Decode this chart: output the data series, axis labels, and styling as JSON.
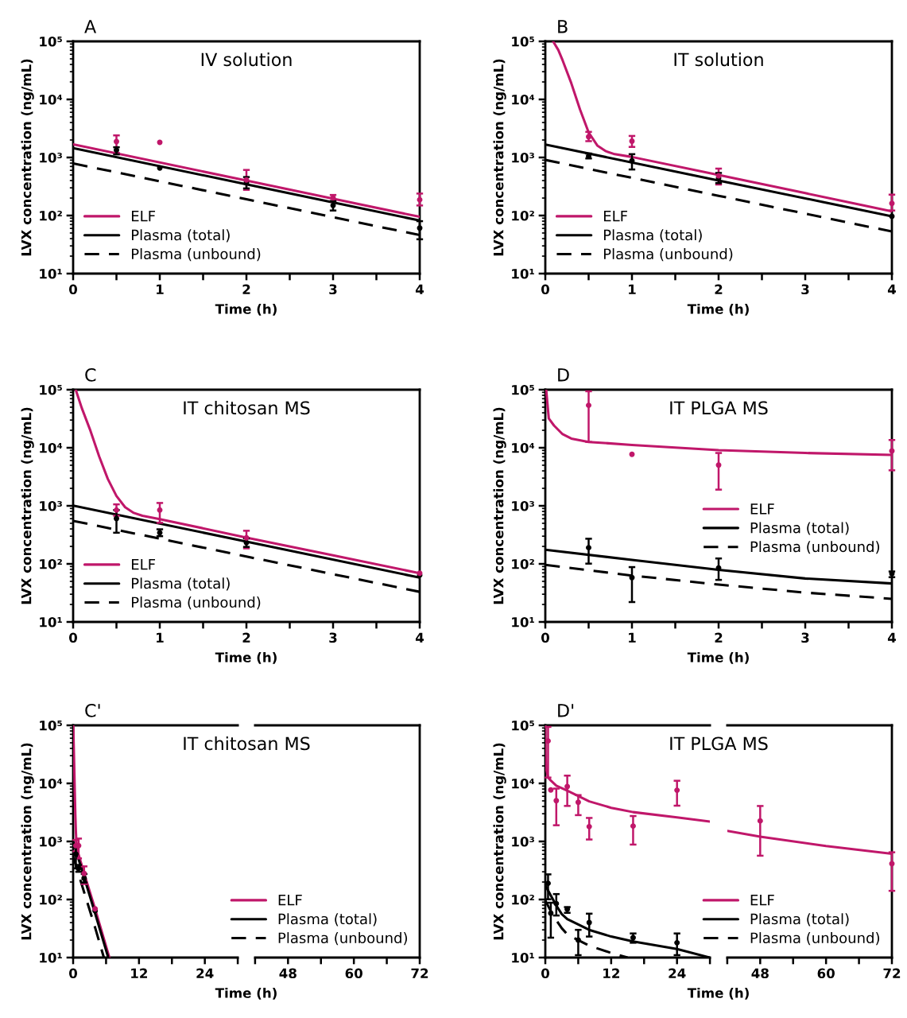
{
  "chart_data": [
    {
      "type": "line",
      "title": "IV solution",
      "annotations": [
        "A"
      ],
      "xlabel": "Time (h)",
      "ylabel": "LVX concentration (ng/mL)",
      "log": "y",
      "xlim": [
        0,
        4
      ],
      "ylim": [
        10,
        100000
      ],
      "xticks": [
        0,
        {
          "value": 0.5,
          "label": null
        },
        1,
        {
          "value": 1.5,
          "label": null
        },
        2,
        {
          "value": 2.5,
          "label": null
        },
        3,
        {
          "value": 3.5,
          "label": null
        },
        4
      ],
      "yticks": [
        {
          "value": 10,
          "label": "10¹"
        },
        {
          "value": 100,
          "label": "10²"
        },
        {
          "value": 1000,
          "label": "10³"
        },
        {
          "value": 10000,
          "label": "10⁴"
        },
        {
          "value": 100000,
          "label": "10⁵"
        }
      ],
      "legend": "bottom left",
      "series": [
        {
          "name": "ELF",
          "color": "#c0176a",
          "line_style": "solid",
          "x": [
            0,
            2,
            4
          ],
          "values": [
            1680,
            400,
            95
          ]
        },
        {
          "name": "Plasma (total)",
          "color": "#000000",
          "line_style": "solid",
          "x": [
            0,
            2,
            4
          ],
          "values": [
            1450,
            345,
            82
          ]
        },
        {
          "name": "Plasma (unbound)",
          "color": "#000000",
          "line_style": "dashed",
          "x": [
            0,
            2,
            4
          ],
          "values": [
            790,
            191,
            46
          ]
        },
        {
          "type": "scatter",
          "color": "#c0176a",
          "marker": "circle",
          "x": [
            0.5,
            1,
            2,
            3,
            4
          ],
          "values": [
            1880,
            1820,
            411,
            202,
            187
          ],
          "errors": [
            [
              1200,
              2400
            ],
            null,
            [
              277,
              610
            ],
            [
              177,
              226
            ],
            [
              149,
              239
            ]
          ]
        },
        {
          "type": "scatter",
          "color": "#000000",
          "marker": "circle",
          "x": [
            0.5,
            1,
            2,
            3,
            4
          ],
          "values": [
            1340,
            659,
            367,
            149,
            61
          ],
          "errors": [
            [
              1130,
              1500
            ],
            null,
            [
              293,
              460
            ],
            [
              122,
              177
            ],
            [
              39,
              80
            ]
          ]
        }
      ]
    },
    {
      "type": "line",
      "title": "IT solution",
      "annotations": [
        "B"
      ],
      "xlabel": "Time (h)",
      "ylabel": "LVX concentration (ng/mL)",
      "log": "y",
      "xlim": [
        0,
        4
      ],
      "ylim": [
        10,
        100000
      ],
      "xticks": [
        0,
        {
          "value": 0.5,
          "label": null
        },
        1,
        {
          "value": 1.5,
          "label": null
        },
        2,
        {
          "value": 2.5,
          "label": null
        },
        3,
        {
          "value": 3.5,
          "label": null
        },
        4
      ],
      "yticks": [
        {
          "value": 10,
          "label": "10¹"
        },
        {
          "value": 100,
          "label": "10²"
        },
        {
          "value": 1000,
          "label": "10³"
        },
        {
          "value": 10000,
          "label": "10⁴"
        },
        {
          "value": 100000,
          "label": "10⁵"
        }
      ],
      "legend": "bottom left",
      "series": [
        {
          "name": "ELF",
          "color": "#c0176a",
          "line_style": "solid",
          "x": [
            0.09,
            0.15,
            0.2,
            0.3,
            0.4,
            0.5,
            0.6,
            0.7,
            0.8,
            1,
            2,
            3,
            4
          ],
          "values": [
            100000,
            71000,
            47000,
            19000,
            6750,
            2700,
            1610,
            1280,
            1140,
            1020,
            500,
            243,
            118
          ]
        },
        {
          "name": "Plasma (total)",
          "color": "#000000",
          "line_style": "solid",
          "x": [
            0,
            2,
            4
          ],
          "values": [
            1670,
            402,
            97
          ]
        },
        {
          "name": "Plasma (unbound)",
          "color": "#000000",
          "line_style": "dashed",
          "x": [
            0,
            2,
            4
          ],
          "values": [
            907,
            219,
            53
          ]
        },
        {
          "type": "scatter",
          "color": "#c0176a",
          "marker": "circle",
          "x": [
            0.5,
            1,
            2,
            4
          ],
          "values": [
            2270,
            1910,
            483,
            162
          ],
          "errors": [
            [
              1910,
              2760
            ],
            [
              1520,
              2350
            ],
            [
              342,
              643
            ],
            [
              122,
              229
            ]
          ]
        },
        {
          "type": "scatter",
          "color": "#000000",
          "marker": "circle",
          "x": [
            0.5,
            1,
            2,
            4
          ],
          "values": [
            1050,
            877,
            440,
            97
          ],
          "errors": [
            [
              962,
              1170
            ],
            [
              621,
              1140
            ],
            [
              362,
              541
            ],
            null
          ]
        }
      ]
    },
    {
      "type": "line",
      "title": "IT chitosan MS",
      "annotations": [
        "C"
      ],
      "xlabel": "Time (h)",
      "ylabel": "LVX concentration (ng/mL)",
      "log": "y",
      "xlim": [
        0,
        4
      ],
      "ylim": [
        10,
        100000
      ],
      "xticks": [
        0,
        {
          "value": 0.5,
          "label": null
        },
        1,
        {
          "value": 1.5,
          "label": null
        },
        2,
        {
          "value": 2.5,
          "label": null
        },
        3,
        {
          "value": 3.5,
          "label": null
        },
        4
      ],
      "yticks": [
        {
          "value": 10,
          "label": "10¹"
        },
        {
          "value": 100,
          "label": "10²"
        },
        {
          "value": 1000,
          "label": "10³"
        },
        {
          "value": 10000,
          "label": "10⁴"
        },
        {
          "value": 100000,
          "label": "10⁵"
        }
      ],
      "legend": "bottom left",
      "series": [
        {
          "name": "ELF",
          "color": "#c0176a",
          "line_style": "solid",
          "x": [
            0.03,
            0.1,
            0.2,
            0.3,
            0.4,
            0.5,
            0.6,
            0.7,
            0.8,
            1,
            2,
            3,
            4
          ],
          "values": [
            100000,
            48200,
            19600,
            7140,
            2910,
            1480,
            946,
            755,
            675,
            590,
            284,
            140,
            69
          ]
        },
        {
          "name": "Plasma (total)",
          "color": "#000000",
          "line_style": "solid",
          "x": [
            0,
            2,
            4
          ],
          "values": [
            1010,
            242,
            58
          ]
        },
        {
          "name": "Plasma (unbound)",
          "color": "#000000",
          "line_style": "dashed",
          "x": [
            0,
            2,
            4
          ],
          "values": [
            551,
            134,
            33
          ]
        },
        {
          "type": "scatter",
          "color": "#c0176a",
          "marker": "circle",
          "x": [
            0.5,
            1,
            2,
            4
          ],
          "values": [
            845,
            845,
            281,
            69
          ],
          "errors": [
            [
              675,
              1060
            ],
            [
              510,
              1120
            ],
            [
              185,
              372
            ],
            null
          ]
        },
        {
          "type": "scatter",
          "color": "#000000",
          "marker": "circle",
          "x": [
            0.5,
            1,
            2,
            4
          ],
          "values": [
            603,
            344,
            232,
            64
          ],
          "errors": [
            [
              344,
              845
            ],
            [
              300,
              394
            ],
            [
              196,
              275
            ],
            null
          ]
        }
      ]
    },
    {
      "type": "line",
      "title": "IT PLGA MS",
      "annotations": [
        "D"
      ],
      "xlabel": "Time (h)",
      "ylabel": "LVX concentration (ng/mL)",
      "log": "y",
      "xlim": [
        0,
        4
      ],
      "ylim": [
        10,
        100000
      ],
      "xticks": [
        0,
        {
          "value": 0.5,
          "label": null
        },
        1,
        {
          "value": 1.5,
          "label": null
        },
        2,
        {
          "value": 2.5,
          "label": null
        },
        3,
        {
          "value": 3.5,
          "label": null
        },
        4
      ],
      "yticks": [
        {
          "value": 10,
          "label": "10¹"
        },
        {
          "value": 100,
          "label": "10²"
        },
        {
          "value": 1000,
          "label": "10³"
        },
        {
          "value": 10000,
          "label": "10⁴"
        },
        {
          "value": 100000,
          "label": "10⁵"
        }
      ],
      "legend": "right",
      "series": [
        {
          "name": "ELF",
          "color": "#c0176a",
          "line_style": "solid",
          "x": [
            0.01,
            0.04,
            0.1,
            0.2,
            0.3,
            0.5,
            1,
            2,
            3,
            4
          ],
          "values": [
            100000,
            32000,
            24200,
            17100,
            14400,
            12600,
            11200,
            9120,
            8130,
            7510
          ]
        },
        {
          "name": "Plasma (total)",
          "color": "#000000",
          "line_style": "solid",
          "x": [
            0,
            1,
            2,
            3,
            4
          ],
          "values": [
            175,
            117,
            79,
            56,
            46
          ]
        },
        {
          "name": "Plasma (unbound)",
          "color": "#000000",
          "line_style": "dashed",
          "x": [
            0,
            1,
            2,
            3,
            4
          ],
          "values": [
            96,
            63,
            44,
            32,
            25
          ]
        },
        {
          "type": "scatter",
          "color": "#c0176a",
          "marker": "circle",
          "x": [
            0.5,
            1,
            2,
            4
          ],
          "values": [
            53800,
            7690,
            5030,
            8810
          ],
          "errors": [
            [
              12600,
              94000
            ],
            null,
            [
              1900,
              8130
            ],
            [
              4090,
              13600
            ]
          ]
        },
        {
          "type": "scatter",
          "color": "#000000",
          "marker": "circle",
          "x": [
            0.5,
            1,
            2,
            4
          ],
          "values": [
            190,
            58,
            85,
            68
          ],
          "errors": [
            [
              101,
              271
            ],
            [
              22,
              88
            ],
            [
              53,
              124
            ],
            [
              59,
              74
            ]
          ]
        }
      ]
    },
    {
      "type": "line",
      "title": "IT chitosan MS",
      "annotations": [
        "C'"
      ],
      "xlabel": "Time (h)",
      "ylabel": "LVX concentration (ng/mL)",
      "log": "y",
      "xlim": [
        0,
        30
      ],
      "ylim": [
        10,
        100000
      ],
      "xticks": [
        0,
        {
          "value": 6,
          "label": null
        },
        12,
        {
          "value": 18,
          "label": null
        },
        24,
        {
          "value": 30,
          "label": null
        }
      ],
      "yticks": [
        {
          "value": 10,
          "label": "10¹"
        },
        {
          "value": 100,
          "label": "10²"
        },
        {
          "value": 1000,
          "label": "10³"
        },
        {
          "value": 10000,
          "label": "10⁴"
        },
        {
          "value": 100000,
          "label": "10⁵"
        }
      ],
      "legend": "bottom right",
      "series": [
        {
          "name": "ELF",
          "color": "#c0176a",
          "line_style": "solid",
          "x": [
            0.03,
            0.1,
            0.2,
            0.3,
            0.4,
            0.5,
            0.6,
            0.7,
            0.8,
            1,
            2,
            3,
            4,
            6.6
          ],
          "values": [
            100000,
            48200,
            19600,
            7140,
            2910,
            1480,
            946,
            755,
            675,
            590,
            284,
            140,
            69,
            10
          ]
        },
        {
          "name": "Plasma (total)",
          "color": "#000000",
          "line_style": "solid",
          "x": [
            0,
            2,
            4,
            6.4
          ],
          "values": [
            1010,
            242,
            58,
            10
          ]
        },
        {
          "name": "Plasma (unbound)",
          "color": "#000000",
          "line_style": "dashed",
          "x": [
            0,
            2,
            4,
            5.6
          ],
          "values": [
            551,
            134,
            33,
            10
          ]
        },
        {
          "type": "scatter",
          "color": "#c0176a",
          "marker": "circle",
          "x": [
            0.5,
            1,
            2,
            4
          ],
          "values": [
            845,
            845,
            281,
            69
          ],
          "errors": [
            [
              675,
              1060
            ],
            [
              510,
              1120
            ],
            [
              185,
              372
            ],
            null
          ]
        },
        {
          "type": "scatter",
          "color": "#000000",
          "marker": "circle",
          "x": [
            0.5,
            1,
            2,
            4
          ],
          "values": [
            603,
            344,
            232,
            64
          ],
          "errors": [
            [
              344,
              845
            ],
            [
              300,
              394
            ],
            [
              196,
              275
            ],
            null
          ]
        }
      ]
    },
    {
      "type": "line",
      "log": "y",
      "xlim": [
        42,
        72
      ],
      "ylim": [
        10,
        100000
      ],
      "xticks": [
        {
          "value": 42,
          "label": null
        },
        48,
        {
          "value": 54,
          "label": null
        },
        60,
        {
          "value": 66,
          "label": null
        },
        72
      ],
      "tick_labels": "x"
    },
    {
      "type": "line",
      "title": "IT PLGA MS",
      "annotations": [
        "D'"
      ],
      "xlabel": "Time (h)",
      "ylabel": "LVX concentration (ng/mL)",
      "log": "y",
      "xlim": [
        0,
        30
      ],
      "ylim": [
        10,
        100000
      ],
      "xticks": [
        0,
        {
          "value": 6,
          "label": null
        },
        12,
        {
          "value": 18,
          "label": null
        },
        24,
        {
          "value": 30,
          "label": null
        }
      ],
      "yticks": [
        {
          "value": 10,
          "label": "10¹"
        },
        {
          "value": 100,
          "label": "10²"
        },
        {
          "value": 1000,
          "label": "10³"
        },
        {
          "value": 10000,
          "label": "10⁴"
        },
        {
          "value": 100000,
          "label": "10⁵"
        }
      ],
      "legend": "bottom right",
      "series": [
        {
          "name": "ELF",
          "color": "#c0176a",
          "line_style": "solid",
          "x": [
            0.01,
            0.04,
            0.1,
            0.2,
            0.5,
            1,
            2,
            4,
            8,
            12,
            16,
            24,
            30
          ],
          "values": [
            100000,
            32000,
            24200,
            17100,
            12600,
            11200,
            9120,
            7510,
            4900,
            3800,
            3200,
            2600,
            2200
          ]
        },
        {
          "name": "Plasma (total)",
          "color": "#000000",
          "line_style": "solid",
          "x": [
            0,
            1,
            2,
            3,
            4,
            8,
            12,
            16,
            24,
            30
          ],
          "values": [
            175,
            117,
            79,
            56,
            46,
            30,
            23,
            19,
            14,
            10
          ]
        },
        {
          "name": "Plasma (unbound)",
          "color": "#000000",
          "line_style": "dashed",
          "x": [
            0,
            1,
            2,
            3,
            4,
            6,
            8,
            12,
            15
          ],
          "values": [
            96,
            63,
            44,
            32,
            25,
            20,
            16,
            12,
            10
          ]
        },
        {
          "type": "scatter",
          "color": "#c0176a",
          "marker": "circle",
          "x": [
            0.5,
            1,
            2,
            4,
            6,
            8,
            16,
            24
          ],
          "values": [
            53800,
            7690,
            5030,
            8810,
            4730,
            1800,
            1840,
            7620
          ],
          "errors": [
            [
              12600,
              94000
            ],
            null,
            [
              1900,
              8130
            ],
            [
              4090,
              13600
            ],
            [
              2840,
              6280
            ],
            [
              1080,
              2540
            ],
            [
              883,
              2740
            ],
            [
              4130,
              11100
            ]
          ]
        },
        {
          "type": "scatter",
          "color": "#000000",
          "marker": "circle",
          "x": [
            0.5,
            1,
            2,
            4,
            6,
            8,
            16,
            24
          ],
          "values": [
            190,
            58,
            85,
            68,
            20,
            40,
            22,
            18
          ],
          "errors": [
            [
              101,
              271
            ],
            [
              22,
              88
            ],
            [
              53,
              124
            ],
            [
              59,
              74
            ],
            [
              11,
              30
            ],
            [
              23,
              57
            ],
            [
              18,
              26
            ],
            [
              11,
              26
            ]
          ]
        }
      ]
    },
    {
      "type": "line",
      "log": "y",
      "xlim": [
        42,
        72
      ],
      "ylim": [
        10,
        100000
      ],
      "xticks": [
        {
          "value": 42,
          "label": null
        },
        48,
        {
          "value": 54,
          "label": null
        },
        60,
        {
          "value": 66,
          "label": null
        },
        72
      ],
      "tick_labels": "x",
      "series": [
        {
          "color": "#c0176a",
          "line_style": "solid",
          "x": [
            42,
            48,
            60,
            72
          ],
          "values": [
            1520,
            1210,
            834,
            614
          ]
        },
        {
          "type": "scatter",
          "color": "#c0176a",
          "marker": "circle",
          "x": [
            48,
            72
          ],
          "values": [
            2260,
            413
          ],
          "errors": [
            [
              568,
              4080
            ],
            [
              141,
              650
            ]
          ]
        }
      ]
    }
  ]
}
